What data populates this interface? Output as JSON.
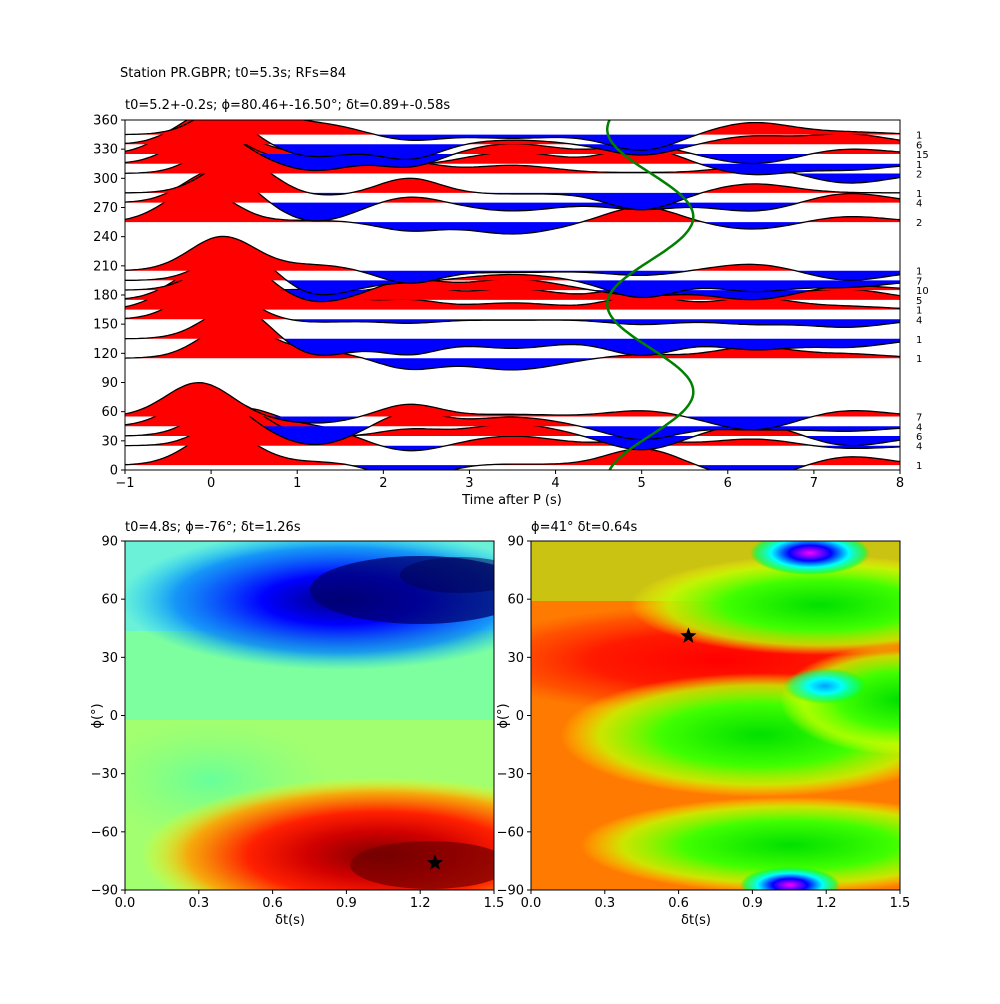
{
  "figure": {
    "suptitle": "Station PR.GBPR; t0=5.3s; RFs=84"
  },
  "chart_data": [
    {
      "type": "line",
      "title": "t0=5.2+-0.2s; ϕ=80.46+-16.50°; δt=0.89+-0.58s",
      "xlabel": "Time after P (s)",
      "ylabel": "",
      "xlim": [
        -1,
        8
      ],
      "ylim": [
        0,
        360
      ],
      "xticks": [
        -1,
        0,
        1,
        2,
        3,
        4,
        5,
        6,
        7,
        8
      ],
      "yticks": [
        0,
        30,
        60,
        90,
        120,
        150,
        180,
        210,
        240,
        270,
        300,
        330,
        360
      ],
      "fill_positive_color": "#ff0000",
      "fill_negative_color": "#0000ff",
      "trace_color": "#000000",
      "curve_color": "#008000",
      "backazimuth_bins": [
        5,
        25,
        35,
        45,
        55,
        115,
        135,
        155,
        165,
        175,
        185,
        195,
        205,
        255,
        275,
        285,
        305,
        315,
        325,
        335,
        345
      ],
      "counts": [
        "1",
        "4",
        "6",
        "4",
        "7",
        "1",
        "1",
        "4",
        "1",
        "5",
        "10",
        "7",
        "1",
        "2",
        "4",
        "1",
        "2",
        "1",
        "15",
        "6",
        "1"
      ],
      "t0_curve": {
        "mean": 5.1,
        "amplitude": 0.5,
        "phase_deg": 80.46
      }
    },
    {
      "type": "heatmap",
      "title": "t0=4.8s; ϕ=-76°; δt=1.26s",
      "xlabel": "δt(s)",
      "ylabel": "ϕ(°)",
      "xlim": [
        0,
        1.5
      ],
      "ylim": [
        -90,
        90
      ],
      "xticks": [
        "0.0",
        "0.3",
        "0.6",
        "0.9",
        "1.2",
        "1.5"
      ],
      "yticks": [
        "90",
        "60",
        "30",
        "0",
        "−30",
        "−60",
        "−90"
      ],
      "colormap": "jet",
      "marker": {
        "dt": 1.26,
        "phi": -76
      }
    },
    {
      "type": "heatmap",
      "title": "ϕ=41° δt=0.64s",
      "xlabel": "δt(s)",
      "ylabel": "ϕ(°)",
      "xlim": [
        0,
        1.5
      ],
      "ylim": [
        -90,
        90
      ],
      "xticks": [
        "0.0",
        "0.3",
        "0.6",
        "0.9",
        "1.2",
        "1.5"
      ],
      "yticks": [
        "90",
        "60",
        "30",
        "0",
        "−30",
        "−60",
        "−90"
      ],
      "colormap": "hsv",
      "marker": {
        "dt": 0.64,
        "phi": 41
      }
    }
  ]
}
